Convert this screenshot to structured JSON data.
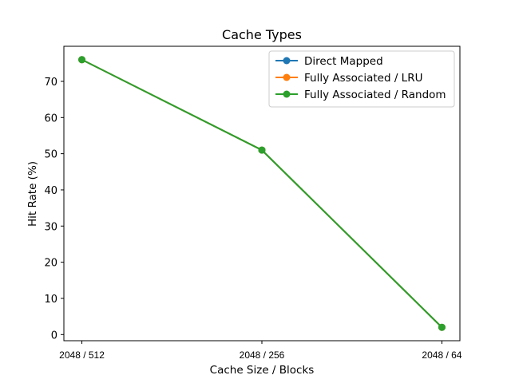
{
  "chart_data": {
    "type": "line",
    "title": "Cache Types",
    "xlabel": "Cache Size / Blocks",
    "ylabel": "Hit Rate (%)",
    "categories": [
      "2048 / 512",
      "2048 / 256",
      "2048 / 64"
    ],
    "yticks": [
      0,
      10,
      20,
      30,
      40,
      50,
      60,
      70
    ],
    "ylim": [
      -1.7,
      79.7
    ],
    "grid": false,
    "legend_position": "top-right",
    "series": [
      {
        "name": "Direct Mapped",
        "color": "#1f77b4",
        "values": [
          76,
          51,
          2
        ]
      },
      {
        "name": "Fully Associated / LRU",
        "color": "#ff7f0e",
        "values": [
          76,
          51,
          2
        ]
      },
      {
        "name": "Fully Associated / Random",
        "color": "#2ca02c",
        "values": [
          76,
          51,
          2
        ]
      }
    ]
  }
}
